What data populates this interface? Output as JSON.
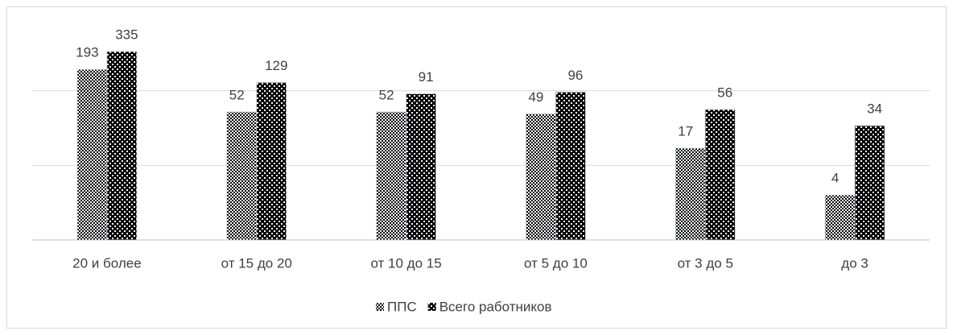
{
  "chart_data": {
    "type": "bar",
    "categories": [
      "20 и более",
      "от 15 до 20",
      "от 10 до 15",
      "от 5 до 10",
      "от 3 до 5",
      "до 3"
    ],
    "series": [
      {
        "name": "ППС",
        "color": "#000000",
        "values": [
          193,
          52,
          52,
          49,
          17,
          4
        ]
      },
      {
        "name": "Всего работников",
        "color": "#000000",
        "values": [
          335,
          129,
          91,
          96,
          56,
          34
        ]
      }
    ],
    "ylim": [
      1,
      1000
    ],
    "yticks": [
      1,
      10,
      100
    ],
    "log_scale": true,
    "grid": true,
    "legend": "bottom"
  }
}
